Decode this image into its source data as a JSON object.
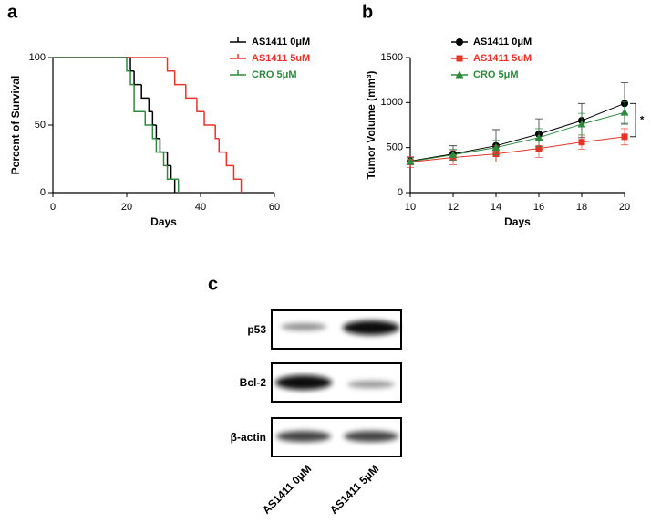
{
  "chart_data": [
    {
      "type": "step",
      "panel_label": "a",
      "ylabel": "Percent of Survival",
      "xlabel": "Days",
      "xlim": [
        0,
        60
      ],
      "xticks": [
        0,
        20,
        40,
        60
      ],
      "ylim": [
        0,
        100
      ],
      "yticks": [
        0,
        50,
        100
      ],
      "legend": "upper right",
      "series": [
        {
          "name": "AS1411 0μM",
          "color": "#000000",
          "x": [
            0,
            21,
            22,
            24,
            26,
            27,
            28,
            29,
            31,
            32,
            33
          ],
          "values": [
            100,
            90,
            80,
            70,
            60,
            50,
            40,
            30,
            20,
            10,
            0
          ]
        },
        {
          "name": "AS1411 5uM",
          "color": "#e8332a",
          "x": [
            0,
            31,
            33,
            36,
            39,
            41,
            44,
            45,
            47,
            49,
            51
          ],
          "values": [
            100,
            90,
            80,
            70,
            60,
            50,
            40,
            30,
            20,
            10,
            0
          ]
        },
        {
          "name": "CRO 5μM",
          "color": "#2e8b3e",
          "x": [
            0,
            20,
            21,
            22,
            25,
            27,
            28,
            30,
            31,
            34
          ],
          "values": [
            100,
            90,
            80,
            60,
            50,
            40,
            30,
            20,
            10,
            0
          ]
        }
      ]
    },
    {
      "type": "line",
      "panel_label": "b",
      "ylabel": "Tumor Volume (mm³)",
      "xlabel": "Days",
      "xlim": [
        10,
        20
      ],
      "xticks": [
        10,
        12,
        14,
        16,
        18,
        20
      ],
      "ylim": [
        0,
        1500
      ],
      "yticks": [
        0,
        500,
        1000,
        1500
      ],
      "legend": "upper left",
      "annotation": "*",
      "series": [
        {
          "name": "AS1411 0μM",
          "color": "#000000",
          "marker": "circle",
          "x": [
            10,
            12,
            14,
            16,
            18,
            20
          ],
          "values": [
            350,
            430,
            520,
            650,
            800,
            990
          ],
          "errors": [
            40,
            90,
            180,
            170,
            190,
            230
          ]
        },
        {
          "name": "AS1411 5uM",
          "color": "#e8332a",
          "marker": "square",
          "x": [
            10,
            12,
            14,
            16,
            18,
            20
          ],
          "values": [
            340,
            390,
            430,
            490,
            560,
            620
          ],
          "errors": [
            60,
            80,
            90,
            100,
            80,
            90
          ]
        },
        {
          "name": "CRO 5μM",
          "color": "#2e8b3e",
          "marker": "triangle",
          "x": [
            10,
            12,
            14,
            16,
            18,
            20
          ],
          "values": [
            345,
            420,
            500,
            610,
            760,
            890
          ],
          "errors": [
            30,
            60,
            80,
            100,
            120,
            120
          ]
        }
      ]
    }
  ],
  "blot": {
    "panel_label": "c",
    "rows": [
      "p53",
      "Bcl-2",
      "β-actin"
    ],
    "lanes": [
      "AS1411 0μM",
      "AS1411 5μM"
    ]
  }
}
